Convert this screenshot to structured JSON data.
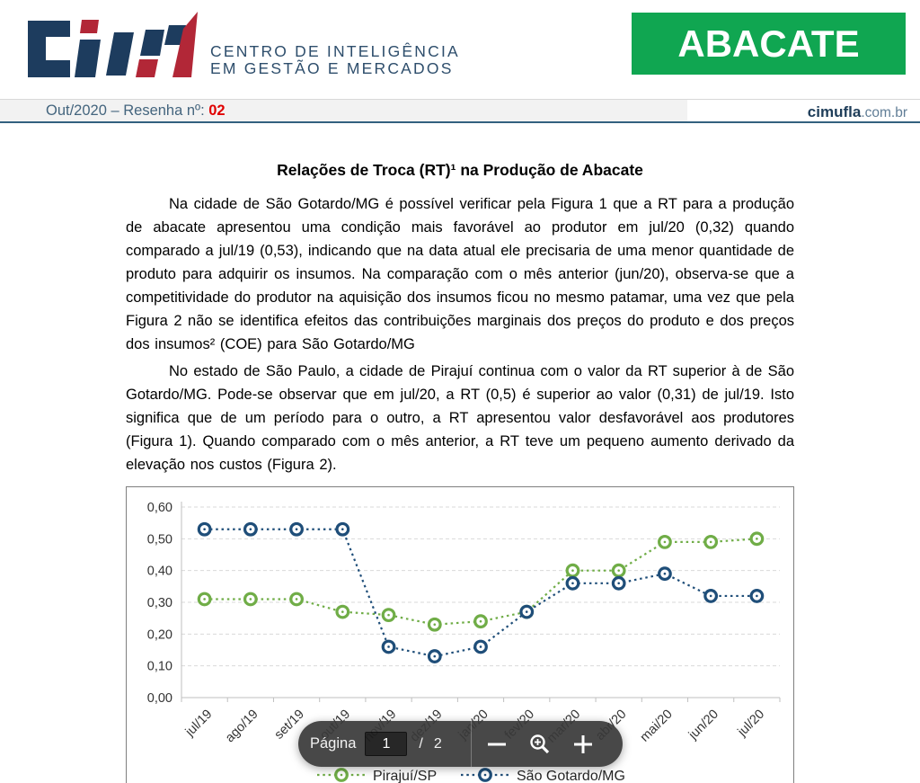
{
  "header": {
    "org_line1": "CENTRO DE INTELIGÊNCIA",
    "org_line2": "EM GESTÃO E MERCADOS",
    "banner_label": "ABACATE",
    "banner_color": "#10A651",
    "logo_navy": "#1D3C5E",
    "logo_red": "#B22737"
  },
  "issue_bar": {
    "issue_text": "Out/2020 – Resenha nº: ",
    "issue_number": "02",
    "issue_number_color": "#E00000",
    "site_name": "cimufla",
    "site_suffix": ".com.br"
  },
  "document": {
    "title": "Relações de Troca (RT)¹ na Produção de Abacate",
    "paragraphs": [
      "Na cidade de São Gotardo/MG é possível verificar pela Figura 1 que a RT para a produção de abacate apresentou uma condição mais favorável ao produtor em jul/20 (0,32) quando comparado a jul/19 (0,53), indicando que na data atual ele precisaria de uma menor quantidade de produto para adquirir os insumos. Na comparação com o mês anterior (jun/20), observa-se que a competitividade do produtor na aquisição dos insumos ficou no mesmo patamar, uma vez que pela Figura 2 não se identifica efeitos das contribuições marginais dos preços do produto e dos preços dos insumos² (COE) para São Gotardo/MG",
      "No estado de São Paulo, a cidade de Pirajuí continua com o valor da RT superior à de São Gotardo/MG. Pode-se observar que em jul/20, a RT (0,5) é superior ao valor (0,31) de jul/19. Isto significa que de um período para o outro, a RT apresentou valor desfavorável aos produtores (Figura 1). Quando comparado com o mês anterior, a RT teve um pequeno aumento derivado da elevação nos custos (Figura 2)."
    ]
  },
  "chart_data": {
    "type": "line",
    "categories": [
      "jul/19",
      "ago/19",
      "set/19",
      "out/19",
      "nov/19",
      "dez/19",
      "jan/20",
      "fev/20",
      "mar/20",
      "abr/20",
      "mai/20",
      "jun/20",
      "jul/20"
    ],
    "series": [
      {
        "name": "Pirajuí/SP",
        "color": "#70AD47",
        "values": [
          0.31,
          0.31,
          0.31,
          0.27,
          0.26,
          0.23,
          0.24,
          0.27,
          0.4,
          0.4,
          0.49,
          0.49,
          0.5
        ]
      },
      {
        "name": "São Gotardo/MG",
        "color": "#1F4E79",
        "values": [
          0.53,
          0.53,
          0.53,
          0.53,
          0.16,
          0.13,
          0.16,
          0.27,
          0.36,
          0.36,
          0.39,
          0.32,
          0.32
        ]
      }
    ],
    "title": "",
    "xlabel": "",
    "ylabel": "",
    "ylim": [
      0,
      0.6
    ],
    "ytick_step": 0.1,
    "decimal_format": "comma",
    "grid": "dashed-horizontal",
    "legend_position": "bottom",
    "marker": "ring-dot",
    "line_style": "dotted"
  },
  "pdf_toolbar": {
    "page_label": "Página",
    "current_page": "1",
    "separator": "/",
    "total_pages": "2",
    "icons": [
      "zoom-out-icon",
      "magnifier-zoom-icon",
      "zoom-in-icon"
    ]
  }
}
